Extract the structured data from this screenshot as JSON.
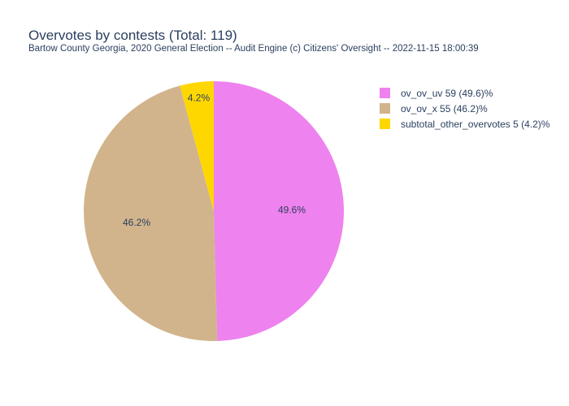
{
  "chart_data": {
    "type": "pie",
    "title": "Overvotes by contests (Total: 119)",
    "subtitle": "Bartow County Georgia, 2020 General Election -- Audit Engine (c) Citizens' Oversight -- 2022-11-15 18:00:39",
    "slices": [
      {
        "label": "ov_ov_uv",
        "value": 59,
        "percent_label": "49.6%",
        "legend": "ov_ov_uv 59 (49.6)%",
        "color": "#ee82ee"
      },
      {
        "label": "ov_ov_x",
        "value": 55,
        "percent_label": "46.2%",
        "legend": "ov_ov_x 55 (46.2)%",
        "color": "#d2b48c"
      },
      {
        "label": "subtotal_other_overvotes",
        "value": 5,
        "percent_label": "4.2%",
        "legend": "subtotal_other_overvotes 5 (4.2)%",
        "color": "#ffd700"
      }
    ],
    "legend_position": "top-right",
    "start_angle_deg": 90,
    "direction": "clockwise",
    "slice_border_color": "#ffffff",
    "text_color": "#2a3f5f"
  }
}
